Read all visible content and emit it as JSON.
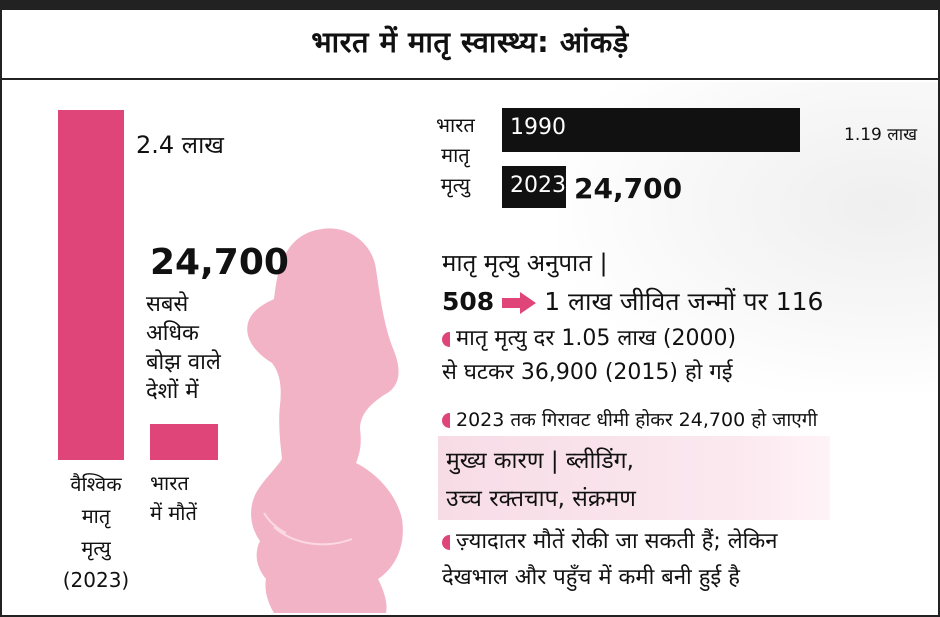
{
  "title": "भारत में मातृ स्वास्थ्य: आंकड़े",
  "chart_data": [
    {
      "type": "bar",
      "categories": [
        "वैश्विक मातृ मृत्यु (2023)",
        "भारत में मौतें"
      ],
      "values": [
        240000,
        24700
      ],
      "value_labels": [
        "2.4 लाख",
        "24,700"
      ],
      "annotation": "सबसे अधिक बोझ वाले देशों में",
      "category_lines": [
        [
          "वैश्विक",
          "मातृ",
          "मृत्यु",
          "(2023)"
        ],
        [
          "भारत",
          "में मौतें"
        ]
      ],
      "annotation_lines": [
        "सबसे",
        "अधिक",
        "बोझ वाले",
        "देशों में"
      ]
    },
    {
      "type": "bar",
      "orientation": "horizontal",
      "label_lines": [
        "भारत",
        "मातृ",
        "मृत्यु"
      ],
      "categories": [
        "1990",
        "2023"
      ],
      "values": [
        119000,
        24700
      ],
      "value_labels": [
        "1.19 लाख",
        "24,700"
      ]
    }
  ],
  "colors": {
    "accent": "#e0457a",
    "dark": "#111111",
    "highlight": "#f9e0ea",
    "silhouette": "#f3b3c6"
  },
  "mmr": {
    "heading": "मातृ मृत्यु अनुपात |",
    "from": "508",
    "to": "1 लाख जीवित जन्मों पर 116"
  },
  "facts": [
    {
      "lines": [
        "मातृ मृत्यु दर 1.05 लाख (2000)",
        "से घटकर 36,900 (2015) हो गई"
      ]
    },
    {
      "lines": [
        "2023 तक गिरावट धीमी होकर 24,700 हो जाएगी"
      ]
    }
  ],
  "causes": {
    "line1": "मुख्य कारण | ब्लीडिंग,",
    "line2": "उच्च रक्तचाप, संक्रमण"
  },
  "closing": {
    "line1": "ज़्यादातर मौतें रोकी जा सकती हैं; लेकिन",
    "line2": "देखभाल और पहुँच में कमी बनी हुई है"
  }
}
